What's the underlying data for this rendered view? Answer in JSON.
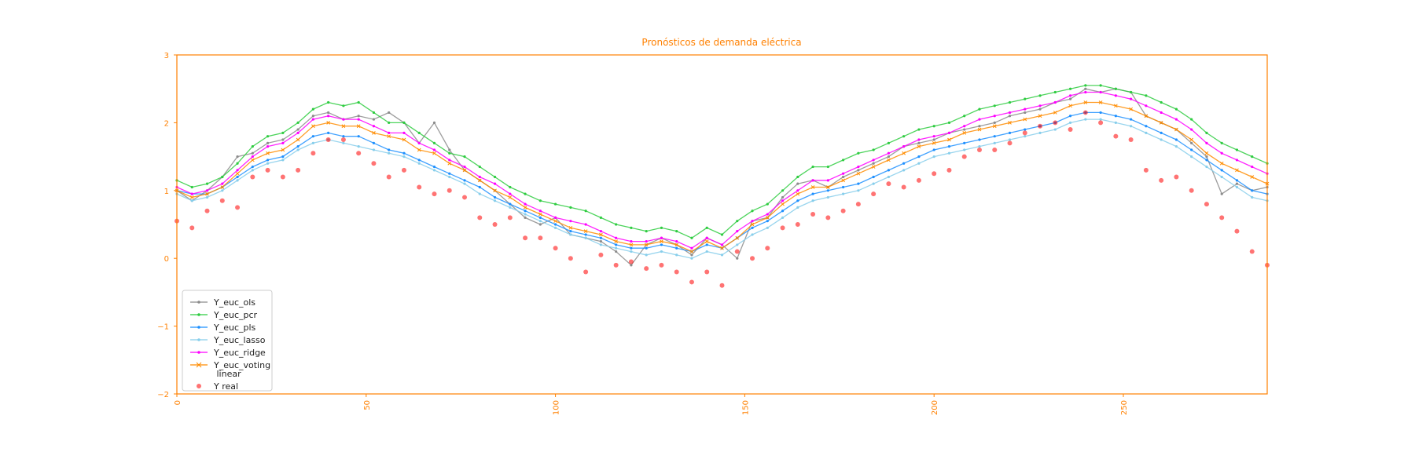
{
  "colors": {
    "axis": "#ff8000",
    "ols": "#8c8c8c",
    "pcr": "#2ecc40",
    "pls": "#1e90ff",
    "lasso": "#87ceeb",
    "ridge": "#ff00ff",
    "voting": "#ff8c00",
    "real": "#ff0000"
  },
  "chart_data": {
    "type": "line",
    "title": "Pronósticos de demanda eléctrica",
    "xlabel": "",
    "ylabel": "",
    "xlim": [
      0,
      288
    ],
    "ylim": [
      -2,
      3
    ],
    "xticks": [
      0,
      50,
      100,
      150,
      200,
      250
    ],
    "yticks": [
      -2,
      -1,
      0,
      1,
      2,
      3
    ],
    "grid": false,
    "legend_position": "lower-left",
    "x_sampling": "every 4 indices",
    "x": [
      0,
      4,
      8,
      12,
      16,
      20,
      24,
      28,
      32,
      36,
      40,
      44,
      48,
      52,
      56,
      60,
      64,
      68,
      72,
      76,
      80,
      84,
      88,
      92,
      96,
      100,
      104,
      108,
      112,
      116,
      120,
      124,
      128,
      132,
      136,
      140,
      144,
      148,
      152,
      156,
      160,
      164,
      168,
      172,
      176,
      180,
      184,
      188,
      192,
      196,
      200,
      204,
      208,
      212,
      216,
      220,
      224,
      228,
      232,
      236,
      240,
      244,
      248,
      252,
      256,
      260,
      264,
      268,
      272,
      276,
      280,
      284,
      288
    ],
    "series": [
      {
        "key": "ols",
        "name": "Y_euc_ols",
        "marker": "dot",
        "values": [
          1.0,
          0.85,
          1.0,
          1.2,
          1.5,
          1.55,
          1.7,
          1.75,
          1.9,
          2.1,
          2.15,
          2.05,
          2.1,
          2.05,
          2.15,
          2.0,
          1.7,
          2.0,
          1.6,
          1.3,
          1.15,
          1.0,
          0.8,
          0.6,
          0.5,
          0.6,
          0.35,
          0.3,
          0.25,
          0.1,
          -0.1,
          0.2,
          0.3,
          0.2,
          0.05,
          0.3,
          0.2,
          0.0,
          0.55,
          0.6,
          0.9,
          1.1,
          1.15,
          1.05,
          1.2,
          1.3,
          1.4,
          1.5,
          1.65,
          1.7,
          1.75,
          1.85,
          1.9,
          1.95,
          2.0,
          2.1,
          2.15,
          2.2,
          2.3,
          2.35,
          2.5,
          2.45,
          2.5,
          2.45,
          2.1,
          2.0,
          1.9,
          1.7,
          1.5,
          0.95,
          1.1,
          1.0,
          1.05
        ]
      },
      {
        "key": "pcr",
        "name": "Y_euc_pcr",
        "marker": "dot",
        "values": [
          1.15,
          1.05,
          1.1,
          1.2,
          1.4,
          1.65,
          1.8,
          1.85,
          2.0,
          2.2,
          2.3,
          2.25,
          2.3,
          2.15,
          2.0,
          2.0,
          1.85,
          1.7,
          1.55,
          1.5,
          1.35,
          1.2,
          1.05,
          0.95,
          0.85,
          0.8,
          0.75,
          0.7,
          0.6,
          0.5,
          0.45,
          0.4,
          0.45,
          0.4,
          0.3,
          0.45,
          0.35,
          0.55,
          0.7,
          0.8,
          1.0,
          1.2,
          1.35,
          1.35,
          1.45,
          1.55,
          1.6,
          1.7,
          1.8,
          1.9,
          1.95,
          2.0,
          2.1,
          2.2,
          2.25,
          2.3,
          2.35,
          2.4,
          2.45,
          2.5,
          2.55,
          2.55,
          2.5,
          2.45,
          2.4,
          2.3,
          2.2,
          2.05,
          1.85,
          1.7,
          1.6,
          1.5,
          1.4
        ]
      },
      {
        "key": "pls",
        "name": "Y_euc_pls",
        "marker": "dot",
        "values": [
          1.0,
          0.95,
          0.95,
          1.05,
          1.2,
          1.35,
          1.45,
          1.5,
          1.65,
          1.8,
          1.85,
          1.8,
          1.8,
          1.7,
          1.6,
          1.55,
          1.45,
          1.35,
          1.25,
          1.15,
          1.05,
          0.9,
          0.8,
          0.7,
          0.6,
          0.5,
          0.4,
          0.35,
          0.3,
          0.2,
          0.15,
          0.15,
          0.2,
          0.15,
          0.1,
          0.2,
          0.15,
          0.3,
          0.45,
          0.55,
          0.7,
          0.85,
          0.95,
          1.0,
          1.05,
          1.1,
          1.2,
          1.3,
          1.4,
          1.5,
          1.6,
          1.65,
          1.7,
          1.75,
          1.8,
          1.85,
          1.9,
          1.95,
          2.0,
          2.1,
          2.15,
          2.15,
          2.1,
          2.05,
          1.95,
          1.85,
          1.75,
          1.6,
          1.45,
          1.3,
          1.15,
          1.0,
          0.95
        ]
      },
      {
        "key": "lasso",
        "name": "Y_euc_lasso",
        "marker": "dot",
        "values": [
          0.95,
          0.85,
          0.9,
          1.0,
          1.15,
          1.3,
          1.4,
          1.45,
          1.6,
          1.7,
          1.75,
          1.7,
          1.65,
          1.6,
          1.55,
          1.5,
          1.4,
          1.3,
          1.2,
          1.1,
          0.95,
          0.85,
          0.75,
          0.65,
          0.55,
          0.45,
          0.35,
          0.3,
          0.2,
          0.15,
          0.1,
          0.05,
          0.1,
          0.05,
          0.0,
          0.1,
          0.05,
          0.2,
          0.35,
          0.45,
          0.6,
          0.75,
          0.85,
          0.9,
          0.95,
          1.0,
          1.1,
          1.2,
          1.3,
          1.4,
          1.5,
          1.55,
          1.6,
          1.65,
          1.7,
          1.75,
          1.8,
          1.85,
          1.9,
          2.0,
          2.05,
          2.05,
          2.0,
          1.95,
          1.85,
          1.75,
          1.65,
          1.5,
          1.35,
          1.2,
          1.05,
          0.9,
          0.85
        ]
      },
      {
        "key": "ridge",
        "name": "Y_euc_ridge",
        "marker": "dot",
        "values": [
          1.05,
          0.95,
          1.0,
          1.1,
          1.3,
          1.5,
          1.65,
          1.7,
          1.85,
          2.05,
          2.1,
          2.05,
          2.05,
          1.95,
          1.85,
          1.85,
          1.7,
          1.6,
          1.45,
          1.35,
          1.2,
          1.1,
          0.95,
          0.8,
          0.7,
          0.6,
          0.55,
          0.5,
          0.4,
          0.3,
          0.25,
          0.25,
          0.3,
          0.25,
          0.15,
          0.3,
          0.2,
          0.4,
          0.55,
          0.65,
          0.85,
          1.0,
          1.15,
          1.15,
          1.25,
          1.35,
          1.45,
          1.55,
          1.65,
          1.75,
          1.8,
          1.85,
          1.95,
          2.05,
          2.1,
          2.15,
          2.2,
          2.25,
          2.3,
          2.4,
          2.45,
          2.45,
          2.4,
          2.35,
          2.25,
          2.15,
          2.05,
          1.9,
          1.7,
          1.55,
          1.45,
          1.35,
          1.25
        ]
      },
      {
        "key": "voting",
        "name": "Y_euc_voting\n linear",
        "marker": "cross",
        "values": [
          1.0,
          0.9,
          0.95,
          1.05,
          1.25,
          1.45,
          1.55,
          1.6,
          1.75,
          1.95,
          2.0,
          1.95,
          1.95,
          1.85,
          1.8,
          1.75,
          1.6,
          1.55,
          1.4,
          1.3,
          1.15,
          1.0,
          0.9,
          0.75,
          0.65,
          0.55,
          0.45,
          0.4,
          0.35,
          0.25,
          0.2,
          0.2,
          0.25,
          0.2,
          0.1,
          0.25,
          0.15,
          0.3,
          0.5,
          0.6,
          0.8,
          0.95,
          1.05,
          1.05,
          1.15,
          1.25,
          1.35,
          1.45,
          1.55,
          1.65,
          1.7,
          1.75,
          1.85,
          1.9,
          1.95,
          2.0,
          2.05,
          2.1,
          2.15,
          2.25,
          2.3,
          2.3,
          2.25,
          2.2,
          2.1,
          2.0,
          1.9,
          1.75,
          1.55,
          1.4,
          1.3,
          1.2,
          1.1
        ]
      },
      {
        "key": "real",
        "name": "Y real",
        "marker": "circle",
        "scatter": true,
        "values": [
          0.55,
          0.45,
          0.7,
          0.85,
          0.75,
          1.2,
          1.3,
          1.2,
          1.3,
          1.55,
          1.75,
          1.75,
          1.55,
          1.4,
          1.2,
          1.3,
          1.05,
          0.95,
          1.0,
          0.9,
          0.6,
          0.5,
          0.6,
          0.3,
          0.3,
          0.15,
          0.0,
          -0.2,
          0.05,
          -0.1,
          -0.05,
          -0.15,
          -0.1,
          -0.2,
          -0.35,
          -0.2,
          -0.4,
          0.1,
          0.0,
          0.15,
          0.45,
          0.5,
          0.65,
          0.6,
          0.7,
          0.8,
          0.95,
          1.1,
          1.05,
          1.15,
          1.25,
          1.3,
          1.5,
          1.6,
          1.6,
          1.7,
          1.85,
          1.95,
          2.0,
          1.9,
          2.15,
          2.0,
          1.8,
          1.75,
          1.3,
          1.15,
          1.2,
          1.0,
          0.8,
          0.6,
          0.4,
          0.1,
          -0.1
        ]
      }
    ]
  }
}
